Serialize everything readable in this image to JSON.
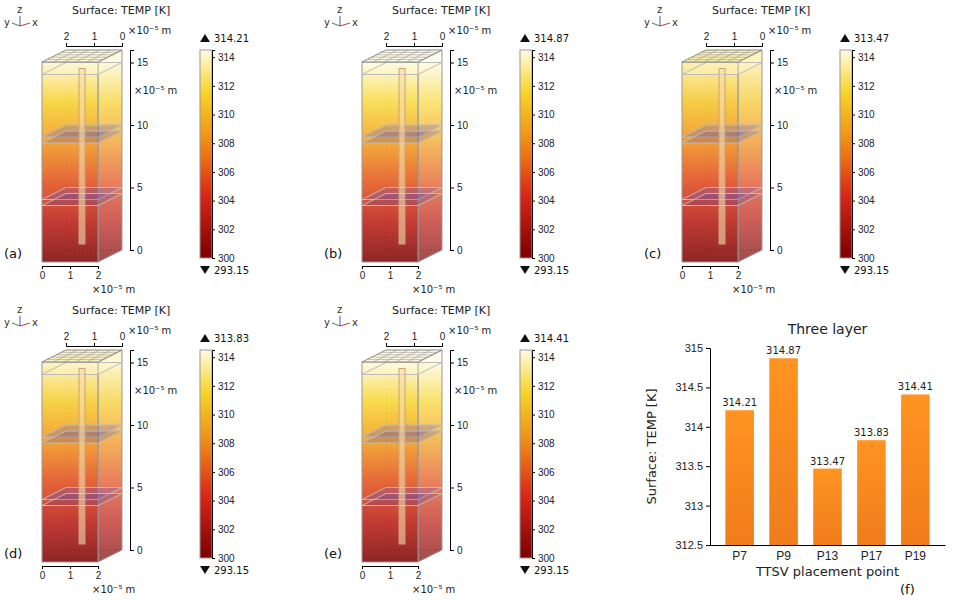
{
  "render": {
    "title": "Surface: TEMP [K]",
    "length_unit": "×10⁻⁵ m",
    "axis_names": [
      "y",
      "z",
      "x"
    ],
    "z_ticks": [
      0,
      5,
      10,
      15
    ],
    "zlim": [
      0,
      16
    ],
    "base_ticks": [
      0,
      1,
      2
    ],
    "colorbar_ticks": [
      300,
      302,
      304,
      306,
      308,
      310,
      312,
      314
    ],
    "colorbar_lim": [
      300,
      314.5
    ]
  },
  "panels": [
    {
      "label": "(a)",
      "max": 314.21,
      "min": 293.15
    },
    {
      "label": "(b)",
      "max": 314.87,
      "min": 293.15
    },
    {
      "label": "(c)",
      "max": 313.47,
      "min": 293.15
    },
    {
      "label": "(d)",
      "max": 313.83,
      "min": 293.15
    },
    {
      "label": "(e)",
      "max": 314.41,
      "min": 293.15
    }
  ],
  "chart_data": {
    "type": "bar",
    "title": "Three layer",
    "x_label": "TTSV placement point",
    "y_label": "Surface: TEMP [K]",
    "categories": [
      "P7",
      "P9",
      "P13",
      "P17",
      "P19"
    ],
    "values": [
      314.21,
      314.87,
      313.47,
      313.83,
      314.41
    ],
    "color": "#f07c1c",
    "ylim": [
      312.5,
      315
    ],
    "yticks": [
      312.5,
      313,
      313.5,
      314,
      314.5,
      315
    ],
    "data_labels": true,
    "grid": false,
    "annotations": [
      "(f)"
    ]
  }
}
